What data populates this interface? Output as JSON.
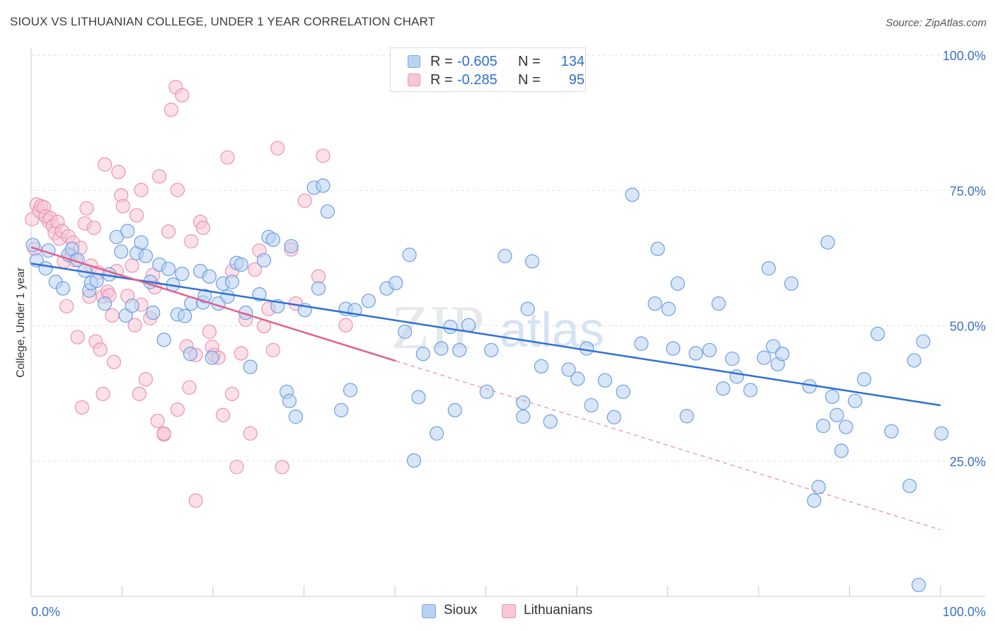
{
  "title": "SIOUX VS LITHUANIAN COLLEGE, UNDER 1 YEAR CORRELATION CHART",
  "source": "Source: ZipAtlas.com",
  "watermark": {
    "zip": "ZIP",
    "atlas": "atlas"
  },
  "legend": {
    "r_label": "R =",
    "n_label": "N =",
    "series": [
      {
        "name": "Sioux",
        "r": "-0.605",
        "n": "134",
        "fill": "#b8d2f3",
        "stroke": "#7fa9e6"
      },
      {
        "name": "Lithuanians",
        "r": "-0.285",
        "n": "95",
        "fill": "#f8c6d6",
        "stroke": "#ee96b3"
      }
    ]
  },
  "chart_data": {
    "type": "scatter",
    "title": "SIOUX VS LITHUANIAN COLLEGE, UNDER 1 YEAR CORRELATION CHART",
    "xlabel": "",
    "ylabel": "College, Under 1 year",
    "xlim": [
      0,
      100
    ],
    "ylim": [
      0,
      104
    ],
    "x_tick_labels": [
      "0.0%",
      "100.0%"
    ],
    "y_tick_labels": [
      "25.0%",
      "50.0%",
      "75.0%",
      "100.0%"
    ],
    "y_ticks": [
      25,
      50,
      75,
      100
    ],
    "grid": true,
    "legend_position": "top-center",
    "series": [
      {
        "name": "Sioux",
        "color": "#4a86d8",
        "trend": {
          "x0": 0,
          "y0": 61.5,
          "x1": 100,
          "y1": 35.3,
          "style": "solid"
        },
        "points": [
          [
            0.2,
            64.9
          ],
          [
            0.6,
            62.1
          ],
          [
            1.6,
            60.6
          ],
          [
            1.9,
            63.9
          ],
          [
            2.7,
            58.1
          ],
          [
            3.5,
            56.9
          ],
          [
            4.1,
            63.1
          ],
          [
            4.5,
            64.2
          ],
          [
            5.1,
            62.2
          ],
          [
            5.9,
            60.2
          ],
          [
            6.4,
            56.5
          ],
          [
            6.6,
            57.9
          ],
          [
            7.2,
            58.3
          ],
          [
            8.1,
            54.1
          ],
          [
            8.6,
            59.5
          ],
          [
            9.4,
            66.4
          ],
          [
            9.9,
            63.7
          ],
          [
            10.4,
            51.9
          ],
          [
            10.6,
            67.5
          ],
          [
            11.1,
            53.7
          ],
          [
            11.6,
            63.4
          ],
          [
            12.1,
            65.4
          ],
          [
            12.6,
            62.9
          ],
          [
            13.1,
            58.1
          ],
          [
            13.4,
            52.4
          ],
          [
            14.1,
            61.3
          ],
          [
            14.6,
            47.4
          ],
          [
            15.1,
            60.5
          ],
          [
            15.6,
            57.6
          ],
          [
            16.1,
            52.1
          ],
          [
            16.6,
            59.6
          ],
          [
            16.9,
            51.8
          ],
          [
            17.5,
            44.8
          ],
          [
            17.6,
            54.1
          ],
          [
            18.6,
            60.1
          ],
          [
            18.9,
            54.3
          ],
          [
            19.1,
            55.5
          ],
          [
            19.6,
            59.1
          ],
          [
            19.9,
            44.1
          ],
          [
            20.6,
            54.1
          ],
          [
            21.1,
            57.8
          ],
          [
            21.6,
            55.4
          ],
          [
            22.1,
            58.1
          ],
          [
            22.6,
            61.6
          ],
          [
            23.1,
            61.3
          ],
          [
            23.6,
            52.4
          ],
          [
            24.1,
            42.4
          ],
          [
            25.1,
            55.8
          ],
          [
            25.6,
            62.1
          ],
          [
            26.1,
            66.4
          ],
          [
            26.6,
            65.9
          ],
          [
            27.1,
            53.6
          ],
          [
            28.1,
            37.8
          ],
          [
            28.4,
            36.1
          ],
          [
            28.6,
            64.7
          ],
          [
            29.1,
            33.2
          ],
          [
            30.1,
            52.9
          ],
          [
            31.1,
            75.5
          ],
          [
            31.6,
            56.9
          ],
          [
            32.1,
            75.9
          ],
          [
            32.6,
            71.1
          ],
          [
            34.1,
            34.4
          ],
          [
            34.6,
            53.1
          ],
          [
            35.1,
            38.1
          ],
          [
            35.6,
            52.9
          ],
          [
            37.1,
            54.6
          ],
          [
            39.1,
            56.9
          ],
          [
            40.1,
            57.9
          ],
          [
            41.1,
            48.9
          ],
          [
            41.6,
            63.1
          ],
          [
            42.1,
            25.1
          ],
          [
            42.6,
            36.8
          ],
          [
            43.1,
            44.8
          ],
          [
            44.6,
            30.1
          ],
          [
            45.1,
            45.8
          ],
          [
            46.1,
            49.8
          ],
          [
            46.6,
            34.4
          ],
          [
            47.1,
            45.5
          ],
          [
            48.1,
            50.1
          ],
          [
            50.1,
            37.8
          ],
          [
            50.6,
            45.5
          ],
          [
            52.1,
            62.9
          ],
          [
            54.1,
            35.8
          ],
          [
            54.1,
            33.2
          ],
          [
            54.6,
            53.1
          ],
          [
            55.1,
            61.9
          ],
          [
            56.1,
            42.5
          ],
          [
            57.1,
            32.3
          ],
          [
            59.1,
            41.9
          ],
          [
            60.1,
            40.2
          ],
          [
            61.1,
            45.8
          ],
          [
            61.6,
            35.3
          ],
          [
            63.1,
            39.9
          ],
          [
            64.1,
            33.1
          ],
          [
            65.1,
            37.8
          ],
          [
            66.1,
            74.2
          ],
          [
            67.1,
            46.7
          ],
          [
            68.6,
            54.1
          ],
          [
            68.9,
            64.2
          ],
          [
            70.1,
            53.1
          ],
          [
            70.6,
            45.8
          ],
          [
            71.1,
            57.8
          ],
          [
            72.1,
            33.3
          ],
          [
            73.1,
            44.9
          ],
          [
            74.6,
            45.5
          ],
          [
            75.6,
            54.1
          ],
          [
            76.1,
            38.4
          ],
          [
            77.1,
            43.9
          ],
          [
            77.6,
            40.6
          ],
          [
            79.1,
            38.1
          ],
          [
            80.6,
            44.1
          ],
          [
            81.1,
            60.6
          ],
          [
            81.6,
            46.2
          ],
          [
            82.1,
            42.9
          ],
          [
            82.6,
            44.8
          ],
          [
            83.6,
            57.8
          ],
          [
            85.6,
            38.8
          ],
          [
            86.1,
            17.7
          ],
          [
            86.6,
            20.2
          ],
          [
            87.1,
            31.5
          ],
          [
            87.6,
            65.4
          ],
          [
            88.1,
            36.9
          ],
          [
            88.6,
            33.5
          ],
          [
            89.1,
            26.9
          ],
          [
            89.6,
            31.3
          ],
          [
            90.6,
            36.1
          ],
          [
            91.6,
            40.1
          ],
          [
            93.1,
            48.5
          ],
          [
            94.6,
            30.5
          ],
          [
            96.6,
            20.4
          ],
          [
            97.1,
            43.6
          ],
          [
            97.6,
            2.1
          ],
          [
            98.1,
            47.1
          ],
          [
            100.1,
            30.1
          ]
        ]
      },
      {
        "name": "Lithuanians",
        "color": "#e36c97",
        "trend": {
          "x0": 0,
          "y0": 64.5,
          "x1": 40.1,
          "y1": 43.5,
          "style": "solid"
        },
        "trend_extension": {
          "x0": 40.1,
          "y0": 43.5,
          "x1": 100,
          "y1": 12.3,
          "style": "dashed"
        },
        "points": [
          [
            0.1,
            69.7
          ],
          [
            0.4,
            64.2
          ],
          [
            0.6,
            72.4
          ],
          [
            0.9,
            71.2
          ],
          [
            1.1,
            72.1
          ],
          [
            1.4,
            71.9
          ],
          [
            1.6,
            70.2
          ],
          [
            1.9,
            69.4
          ],
          [
            2.1,
            69.9
          ],
          [
            2.4,
            68.4
          ],
          [
            2.6,
            67.1
          ],
          [
            2.9,
            69.2
          ],
          [
            3.1,
            66.1
          ],
          [
            3.4,
            67.5
          ],
          [
            3.6,
            61.9
          ],
          [
            3.9,
            53.6
          ],
          [
            4.1,
            66.5
          ],
          [
            4.4,
            62.9
          ],
          [
            4.6,
            65.4
          ],
          [
            4.9,
            62.1
          ],
          [
            5.1,
            47.9
          ],
          [
            5.4,
            64.4
          ],
          [
            5.9,
            68.9
          ],
          [
            6.1,
            71.7
          ],
          [
            6.4,
            55.4
          ],
          [
            6.6,
            61.1
          ],
          [
            6.9,
            68.1
          ],
          [
            7.1,
            47.1
          ],
          [
            7.4,
            59.8
          ],
          [
            7.6,
            45.6
          ],
          [
            7.9,
            55.4
          ],
          [
            8.1,
            79.8
          ],
          [
            8.4,
            56.3
          ],
          [
            8.6,
            55.6
          ],
          [
            8.9,
            51.9
          ],
          [
            9.1,
            43.3
          ],
          [
            9.4,
            60.1
          ],
          [
            9.6,
            78.4
          ],
          [
            9.9,
            74.1
          ],
          [
            10.1,
            72.1
          ],
          [
            10.6,
            55.5
          ],
          [
            11.1,
            61.1
          ],
          [
            11.4,
            50.1
          ],
          [
            11.6,
            70.4
          ],
          [
            11.9,
            37.4
          ],
          [
            12.1,
            53.9
          ],
          [
            12.6,
            40.1
          ],
          [
            13.1,
            51.4
          ],
          [
            13.4,
            59.4
          ],
          [
            13.6,
            57.1
          ],
          [
            13.9,
            32.4
          ],
          [
            14.1,
            77.6
          ],
          [
            14.6,
            29.9
          ],
          [
            15.1,
            67.4
          ],
          [
            15.4,
            89.9
          ],
          [
            15.9,
            94.1
          ],
          [
            16.1,
            34.5
          ],
          [
            16.6,
            92.6
          ],
          [
            17.1,
            46.2
          ],
          [
            17.4,
            38.6
          ],
          [
            17.6,
            65.6
          ],
          [
            18.1,
            44.6
          ],
          [
            18.6,
            69.2
          ],
          [
            18.9,
            68.1
          ],
          [
            19.6,
            48.9
          ],
          [
            19.9,
            46.1
          ],
          [
            20.1,
            44.6
          ],
          [
            20.6,
            44.1
          ],
          [
            21.1,
            33.5
          ],
          [
            21.6,
            81.1
          ],
          [
            22.1,
            37.4
          ],
          [
            22.6,
            23.9
          ],
          [
            23.1,
            44.9
          ],
          [
            23.6,
            51.1
          ],
          [
            24.1,
            30.1
          ],
          [
            24.6,
            60.4
          ],
          [
            25.1,
            63.9
          ],
          [
            25.6,
            49.9
          ],
          [
            26.1,
            53.1
          ],
          [
            26.6,
            45.5
          ],
          [
            27.1,
            82.8
          ],
          [
            27.6,
            23.9
          ],
          [
            28.6,
            64.1
          ],
          [
            29.1,
            54.1
          ],
          [
            30.1,
            73.1
          ],
          [
            31.6,
            59.1
          ],
          [
            32.1,
            81.4
          ],
          [
            34.6,
            50.1
          ],
          [
            5.6,
            34.9
          ],
          [
            7.9,
            37.4
          ],
          [
            12.1,
            75.1
          ],
          [
            14.6,
            30.1
          ],
          [
            16.1,
            75.1
          ],
          [
            18.1,
            17.7
          ],
          [
            22.1,
            60.1
          ]
        ]
      }
    ]
  }
}
